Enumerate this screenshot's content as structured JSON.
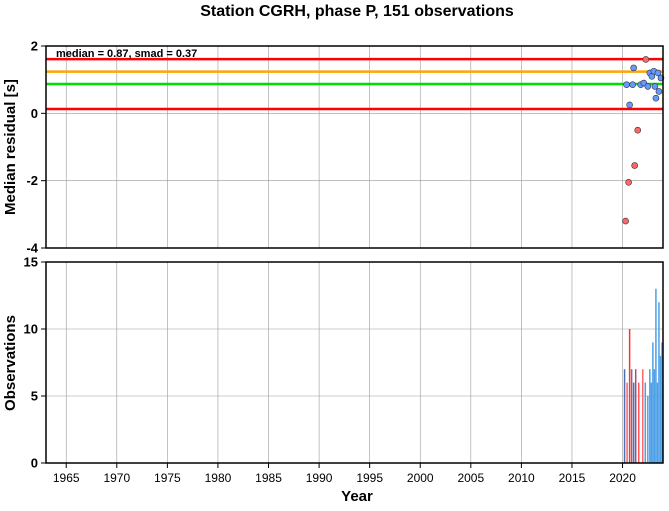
{
  "chart_data": [
    {
      "type": "scatter",
      "title": "Station CGRH, phase P, 151 observations",
      "ylabel": "Median residual [s]",
      "xlim": [
        1963,
        2024
      ],
      "ylim": [
        -4,
        2
      ],
      "yticks": [
        -4,
        -2,
        0,
        2
      ],
      "grid": true,
      "annotation": "median = 0.87, smad = 0.37",
      "reference_lines": [
        {
          "y": 1.61,
          "color": "#ff0000"
        },
        {
          "y": 1.24,
          "color": "#ffa500"
        },
        {
          "y": 0.87,
          "color": "#00dd00"
        },
        {
          "y": 0.13,
          "color": "#ff0000"
        }
      ],
      "series": [
        {
          "color": "#ff6666",
          "points": [
            {
              "x": 2020.3,
              "y": -3.2
            },
            {
              "x": 2020.6,
              "y": -2.05
            },
            {
              "x": 2021.2,
              "y": -1.55
            },
            {
              "x": 2021.5,
              "y": -0.5
            },
            {
              "x": 2022.3,
              "y": 1.6
            }
          ]
        },
        {
          "color": "#6699ff",
          "points": [
            {
              "x": 2020.4,
              "y": 0.85
            },
            {
              "x": 2020.7,
              "y": 0.25
            },
            {
              "x": 2021.0,
              "y": 0.85
            },
            {
              "x": 2021.1,
              "y": 1.35
            },
            {
              "x": 2021.8,
              "y": 0.85
            },
            {
              "x": 2022.1,
              "y": 0.9
            },
            {
              "x": 2022.5,
              "y": 0.8
            },
            {
              "x": 2022.7,
              "y": 1.2
            },
            {
              "x": 2022.9,
              "y": 1.1
            },
            {
              "x": 2023.1,
              "y": 1.25
            },
            {
              "x": 2023.2,
              "y": 0.8
            },
            {
              "x": 2023.3,
              "y": 0.45
            },
            {
              "x": 2023.5,
              "y": 1.2
            },
            {
              "x": 2023.6,
              "y": 0.65
            },
            {
              "x": 2023.8,
              "y": 1.05
            }
          ]
        }
      ]
    },
    {
      "type": "bar",
      "xlabel": "Year",
      "ylabel": "Observations",
      "xlim": [
        1963,
        2024
      ],
      "ylim": [
        0,
        15
      ],
      "yticks": [
        0,
        5,
        10,
        15
      ],
      "xticks": [
        1965,
        1970,
        1975,
        1980,
        1985,
        1990,
        1995,
        2000,
        2005,
        2010,
        2015,
        2020
      ],
      "grid": true,
      "bars": [
        {
          "x": 2020.2,
          "value": 7,
          "color": "#4d6fb3"
        },
        {
          "x": 2020.45,
          "value": 6,
          "color": "#ff6666"
        },
        {
          "x": 2020.7,
          "value": 10,
          "color": "#ff3333"
        },
        {
          "x": 2020.9,
          "value": 7,
          "color": "#7a6a9a"
        },
        {
          "x": 2021.1,
          "value": 6,
          "color": "#4d6fb3"
        },
        {
          "x": 2021.3,
          "value": 7,
          "color": "#a05080"
        },
        {
          "x": 2021.6,
          "value": 6,
          "color": "#ff5555"
        },
        {
          "x": 2022.0,
          "value": 7,
          "color": "#ff6666"
        },
        {
          "x": 2022.25,
          "value": 6,
          "color": "#4d9fe6"
        },
        {
          "x": 2022.5,
          "value": 5,
          "color": "#4d9fe6"
        },
        {
          "x": 2022.7,
          "value": 7,
          "color": "#4d9fe6"
        },
        {
          "x": 2022.85,
          "value": 6,
          "color": "#4d9fe6"
        },
        {
          "x": 2023.0,
          "value": 9,
          "color": "#4d9fe6"
        },
        {
          "x": 2023.15,
          "value": 7,
          "color": "#4d9fe6"
        },
        {
          "x": 2023.3,
          "value": 13,
          "color": "#4d9fe6"
        },
        {
          "x": 2023.45,
          "value": 6,
          "color": "#4d9fe6"
        },
        {
          "x": 2023.6,
          "value": 12,
          "color": "#4d9fe6"
        },
        {
          "x": 2023.75,
          "value": 8,
          "color": "#4d9fe6"
        },
        {
          "x": 2023.9,
          "value": 9,
          "color": "#4d9fe6"
        }
      ]
    }
  ]
}
